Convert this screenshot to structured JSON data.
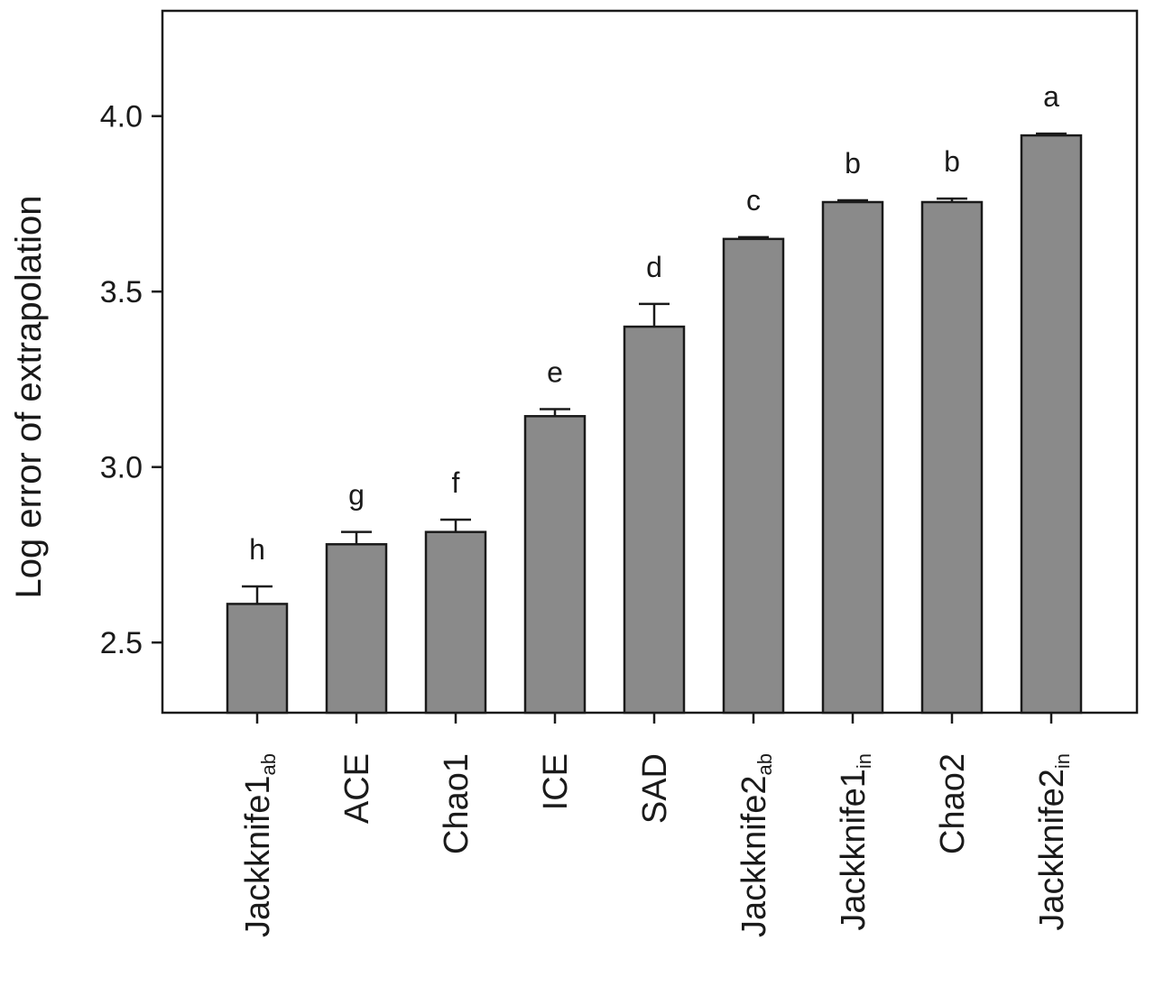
{
  "chart_data": {
    "type": "bar",
    "title": "",
    "xlabel": "",
    "ylabel": "Log error of extrapolation",
    "ylim": [
      2.3,
      4.3
    ],
    "yticks": [
      2.5,
      3.0,
      3.5,
      4.0
    ],
    "ytick_labels": [
      "2.5",
      "3.0",
      "3.5",
      "4.0"
    ],
    "grid": false,
    "legend": "none",
    "bar_color": "#8a8a8a",
    "categories": [
      {
        "base": "Jackknife1",
        "sub": "ab"
      },
      {
        "base": "ACE",
        "sub": ""
      },
      {
        "base": "Chao1",
        "sub": ""
      },
      {
        "base": "ICE",
        "sub": ""
      },
      {
        "base": "SAD",
        "sub": ""
      },
      {
        "base": "Jackknife2",
        "sub": "ab"
      },
      {
        "base": "Jackknife1",
        "sub": "in"
      },
      {
        "base": "Chao2",
        "sub": ""
      },
      {
        "base": "Jackknife2",
        "sub": "in"
      }
    ],
    "values": [
      2.61,
      2.78,
      2.815,
      3.145,
      3.4,
      3.65,
      3.755,
      3.755,
      3.945
    ],
    "errors": [
      0.05,
      0.035,
      0.035,
      0.02,
      0.065,
      0.005,
      0.005,
      0.01,
      0.005
    ],
    "letters": [
      "h",
      "g",
      "f",
      "e",
      "d",
      "c",
      "b",
      "b",
      "a"
    ]
  }
}
